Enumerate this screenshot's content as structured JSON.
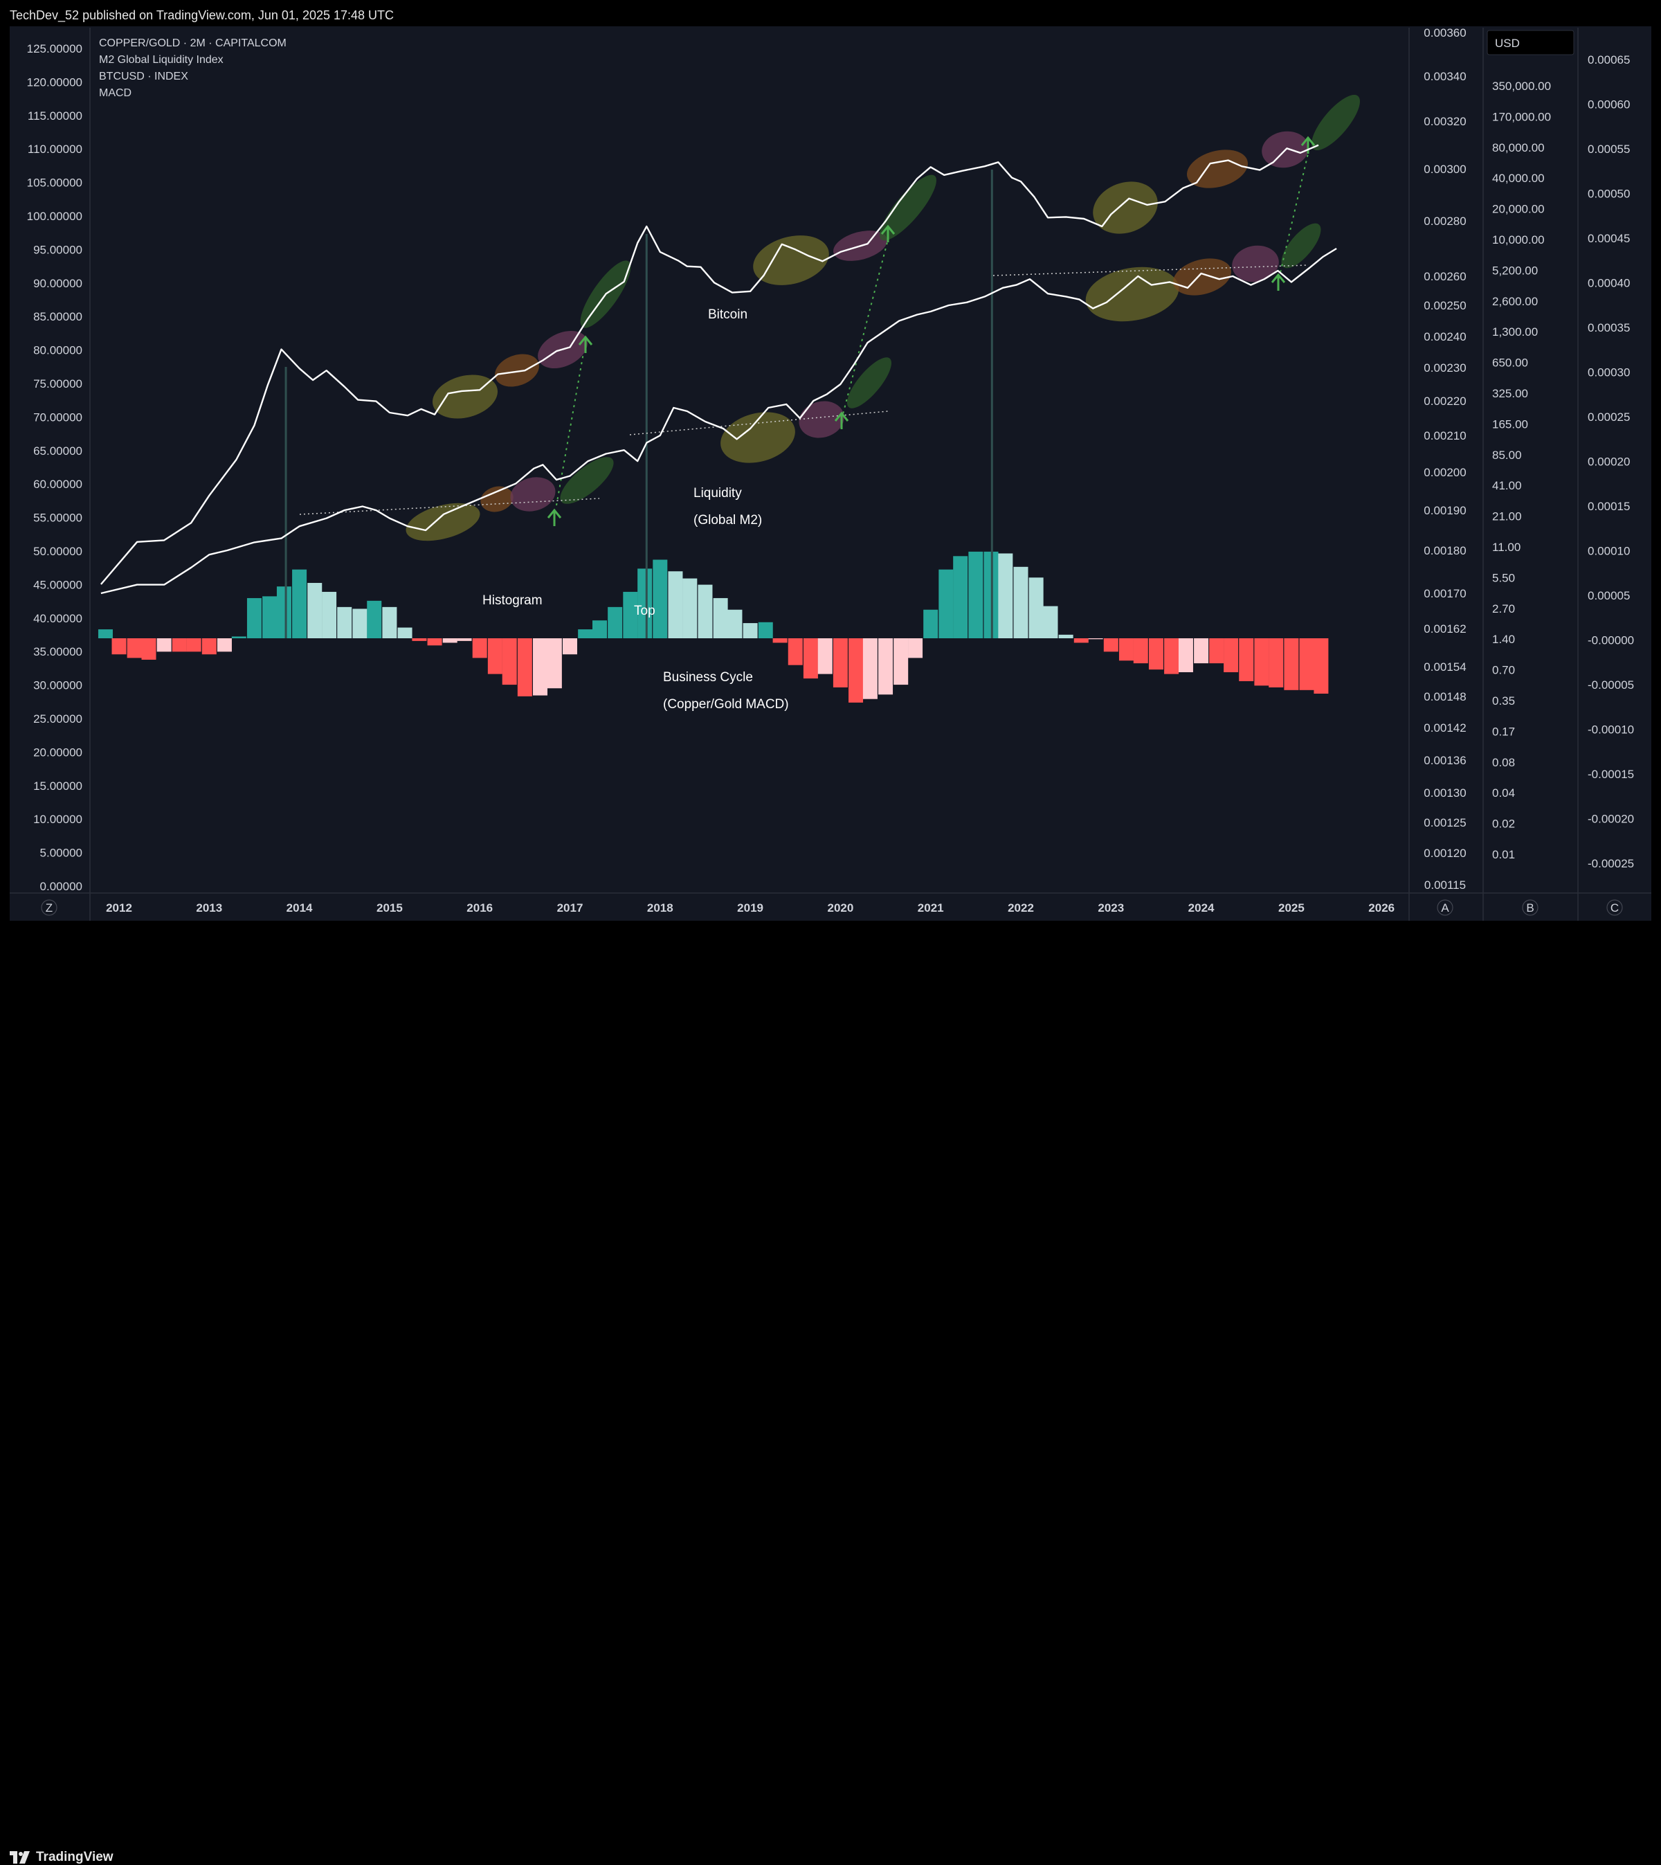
{
  "header": {
    "publish_line": "TechDev_52 published on TradingView.com, Jun 01, 2025 17:48 UTC"
  },
  "footer": {
    "logo_text": "TradingView"
  },
  "legend": [
    "COPPER/GOLD · 2M · CAPITALCOM",
    "M2 Global Liquidity Index",
    "BTCUSD · INDEX",
    "MACD"
  ],
  "currency_badge": "USD",
  "axis_letters": {
    "z": "Z",
    "a": "A",
    "b": "B",
    "c": "C"
  },
  "annotations": {
    "bitcoin": "Bitcoin",
    "liquidity": "Liquidity",
    "liquidity_sub": "(Global M2)",
    "histogram": "Histogram",
    "top": "Top",
    "business_cycle": "Business Cycle",
    "business_cycle_sub": "(Copper/Gold MACD)"
  },
  "colors": {
    "background": "#131722",
    "hist_strong_pos": "#26a69a",
    "hist_weak_pos": "#b2dfdb",
    "hist_strong_neg": "#ff5252",
    "hist_weak_neg": "#ffcdd2",
    "line": "#ffffff",
    "arrow": "#4caf50",
    "histogram_label": "#26a69a"
  },
  "chart_data": {
    "type": "line",
    "x_axis": {
      "labels": [
        "2012",
        "2013",
        "2014",
        "2015",
        "2016",
        "2017",
        "2018",
        "2019",
        "2020",
        "2021",
        "2022",
        "2023",
        "2024",
        "2025",
        "2026"
      ]
    },
    "left_axis": {
      "labels": [
        "125.00000",
        "120.00000",
        "115.00000",
        "110.00000",
        "105.00000",
        "100.00000",
        "95.00000",
        "90.00000",
        "85.00000",
        "80.00000",
        "75.00000",
        "70.00000",
        "65.00000",
        "60.00000",
        "55.00000",
        "50.00000",
        "45.00000",
        "40.00000",
        "35.00000",
        "30.00000",
        "25.00000",
        "20.00000",
        "15.00000",
        "10.00000",
        "5.00000",
        "0.00000"
      ]
    },
    "axis_a": {
      "labels": [
        "0.00360",
        "0.00340",
        "0.00320",
        "0.00300",
        "0.00280",
        "0.00260",
        "0.00250",
        "0.00240",
        "0.00230",
        "0.00220",
        "0.00210",
        "0.00200",
        "0.00190",
        "0.00180",
        "0.00170",
        "0.00162",
        "0.00154",
        "0.00148",
        "0.00142",
        "0.00136",
        "0.00130",
        "0.00125",
        "0.00120",
        "0.00115"
      ]
    },
    "axis_b": {
      "labels": [
        "350,000.00",
        "170,000.00",
        "80,000.00",
        "40,000.00",
        "20,000.00",
        "10,000.00",
        "5,200.00",
        "2,600.00",
        "1,300.00",
        "650.00",
        "325.00",
        "165.00",
        "85.00",
        "41.00",
        "21.00",
        "11.00",
        "5.50",
        "2.70",
        "1.40",
        "0.70",
        "0.35",
        "0.17",
        "0.08",
        "0.04",
        "0.02",
        "0.01"
      ]
    },
    "axis_c": {
      "labels": [
        "0.00065",
        "0.00060",
        "0.00055",
        "0.00050",
        "0.00045",
        "0.00040",
        "0.00035",
        "0.00030",
        "0.00025",
        "0.00020",
        "0.00015",
        "0.00010",
        "0.00005",
        "-0.00000",
        "-0.00005",
        "-0.00010",
        "-0.00015",
        "-0.00020",
        "-0.00025"
      ]
    },
    "series": [
      {
        "name": "BTCUSD · INDEX",
        "axis": "B",
        "x": [
          2011.8,
          2012.2,
          2012.5,
          2012.8,
          2013.0,
          2013.3,
          2013.5,
          2013.65,
          2013.8,
          2014.0,
          2014.15,
          2014.3,
          2014.5,
          2014.65,
          2014.85,
          2015.0,
          2015.2,
          2015.35,
          2015.5,
          2015.65,
          2015.8,
          2016.0,
          2016.2,
          2016.5,
          2016.7,
          2016.85,
          2017.0,
          2017.2,
          2017.4,
          2017.6,
          2017.75,
          2017.85,
          2018.0,
          2018.2,
          2018.3,
          2018.45,
          2018.6,
          2018.8,
          2019.0,
          2019.15,
          2019.35,
          2019.5,
          2019.65,
          2019.8,
          2020.0,
          2020.3,
          2020.5,
          2020.65,
          2020.85,
          2021.0,
          2021.15,
          2021.35,
          2021.6,
          2021.75,
          2021.9,
          2022.0,
          2022.15,
          2022.3,
          2022.5,
          2022.7,
          2022.9,
          2023.0,
          2023.2,
          2023.4,
          2023.6,
          2023.8,
          2023.95,
          2024.1,
          2024.3,
          2024.45,
          2024.65,
          2024.8,
          2024.95,
          2025.1,
          2025.3
        ],
        "y": [
          5,
          13,
          13.5,
          20,
          37,
          83,
          180,
          450,
          1000,
          650,
          500,
          620,
          430,
          320,
          310,
          240,
          225,
          260,
          230,
          370,
          390,
          400,
          570,
          620,
          780,
          960,
          1050,
          2000,
          3500,
          4600,
          11000,
          16000,
          9000,
          7400,
          6500,
          6400,
          4500,
          3600,
          3700,
          5300,
          10700,
          9500,
          8200,
          7300,
          9000,
          10800,
          18000,
          28000,
          47000,
          61000,
          51000,
          56000,
          62000,
          68000,
          48000,
          44000,
          31000,
          19500,
          19800,
          19000,
          16000,
          21000,
          30000,
          26000,
          28000,
          38000,
          43000,
          66000,
          71000,
          62000,
          57000,
          68000,
          93000,
          84000,
          100000
        ]
      },
      {
        "name": "M2 Global Liquidity Index",
        "axis": "A",
        "x": [
          2011.8,
          2012.2,
          2012.5,
          2012.8,
          2013.0,
          2013.2,
          2013.5,
          2013.8,
          2014.0,
          2014.3,
          2014.5,
          2014.7,
          2014.85,
          2015.0,
          2015.2,
          2015.4,
          2015.6,
          2015.8,
          2016.0,
          2016.2,
          2016.4,
          2016.6,
          2016.7,
          2016.85,
          2017.0,
          2017.2,
          2017.4,
          2017.6,
          2017.75,
          2017.85,
          2018.0,
          2018.15,
          2018.3,
          2018.5,
          2018.7,
          2018.85,
          2019.0,
          2019.2,
          2019.4,
          2019.55,
          2019.7,
          2019.85,
          2020.0,
          2020.15,
          2020.3,
          2020.5,
          2020.65,
          2020.85,
          2021.0,
          2021.2,
          2021.4,
          2021.6,
          2021.8,
          2021.95,
          2022.1,
          2022.3,
          2022.5,
          2022.65,
          2022.8,
          2022.95,
          2023.15,
          2023.3,
          2023.45,
          2023.65,
          2023.85,
          2024.0,
          2024.2,
          2024.35,
          2024.55,
          2024.7,
          2024.85,
          2025.0,
          2025.2,
          2025.35,
          2025.5
        ],
        "y": [
          0.0017,
          0.00172,
          0.00172,
          0.00176,
          0.00179,
          0.0018,
          0.00182,
          0.00183,
          0.00186,
          0.00188,
          0.0019,
          0.00191,
          0.0019,
          0.00188,
          0.00186,
          0.00185,
          0.00189,
          0.00191,
          0.00193,
          0.00195,
          0.00197,
          0.00201,
          0.00202,
          0.00198,
          0.00199,
          0.00203,
          0.00205,
          0.00206,
          0.00203,
          0.00208,
          0.0021,
          0.00218,
          0.00217,
          0.00214,
          0.00212,
          0.00209,
          0.00212,
          0.00218,
          0.00219,
          0.00215,
          0.0022,
          0.00222,
          0.00225,
          0.00231,
          0.00238,
          0.00242,
          0.00245,
          0.00247,
          0.00248,
          0.0025,
          0.00251,
          0.00253,
          0.00256,
          0.00257,
          0.00259,
          0.00254,
          0.00253,
          0.00252,
          0.00249,
          0.00251,
          0.00256,
          0.0026,
          0.00257,
          0.00258,
          0.00256,
          0.00261,
          0.00259,
          0.0026,
          0.00257,
          0.00259,
          0.00262,
          0.00258,
          0.00263,
          0.00267,
          0.0027
        ]
      }
    ],
    "histogram": {
      "name": "Copper/Gold MACD Histogram",
      "axis": "C",
      "x": [
        2011.85,
        2012.0,
        2012.17,
        2012.33,
        2012.5,
        2012.67,
        2012.83,
        2013.0,
        2013.17,
        2013.33,
        2013.5,
        2013.67,
        2013.83,
        2014.0,
        2014.17,
        2014.33,
        2014.5,
        2014.67,
        2014.83,
        2015.0,
        2015.17,
        2015.33,
        2015.5,
        2015.67,
        2015.83,
        2016.0,
        2016.17,
        2016.33,
        2016.5,
        2016.67,
        2016.83,
        2017.0,
        2017.17,
        2017.33,
        2017.5,
        2017.67,
        2017.83,
        2018.0,
        2018.17,
        2018.33,
        2018.5,
        2018.67,
        2018.83,
        2019.0,
        2019.17,
        2019.33,
        2019.5,
        2019.67,
        2019.83,
        2020.0,
        2020.17,
        2020.33,
        2020.5,
        2020.67,
        2020.83,
        2021.0,
        2021.17,
        2021.33,
        2021.5,
        2021.67,
        2021.83,
        2022.0,
        2022.17,
        2022.33,
        2022.5,
        2022.67,
        2022.83,
        2023.0,
        2023.17,
        2023.33,
        2023.5,
        2023.67,
        2023.83,
        2024.0,
        2024.17,
        2024.33,
        2024.5,
        2024.67,
        2024.83,
        2025.0,
        2025.17,
        2025.33
      ],
      "y": [
        1e-05,
        -1.8e-05,
        -2.2e-05,
        -2.4e-05,
        -1.5e-05,
        -1.5e-05,
        -1.5e-05,
        -1.8e-05,
        -1.5e-05,
        2e-06,
        4.5e-05,
        4.7e-05,
        5.8e-05,
        7.7e-05,
        6.2e-05,
        5.2e-05,
        3.5e-05,
        3.3e-05,
        4.2e-05,
        3.5e-05,
        1.2e-05,
        -3e-06,
        -8e-06,
        -5e-06,
        -3e-06,
        -2.2e-05,
        -4e-05,
        -5.2e-05,
        -6.5e-05,
        -6.4e-05,
        -5.6e-05,
        -1.8e-05,
        1e-05,
        2e-05,
        3.5e-05,
        5.2e-05,
        7.8e-05,
        8.8e-05,
        7.5e-05,
        6.7e-05,
        6e-05,
        4.5e-05,
        3.2e-05,
        1.7e-05,
        1.8e-05,
        -5e-06,
        -3e-05,
        -4.5e-05,
        -4e-05,
        -5.5e-05,
        -7.2e-05,
        -6.8e-05,
        -6.3e-05,
        -5.2e-05,
        -2.2e-05,
        3.2e-05,
        7.7e-05,
        9.2e-05,
        9.7e-05,
        9.7e-05,
        9.5e-05,
        8e-05,
        6.8e-05,
        3.6e-05,
        4e-06,
        -5e-06,
        -1e-06,
        -1.5e-05,
        -2.5e-05,
        -2.8e-05,
        -3.5e-05,
        -4e-05,
        -3.8e-05,
        -2.8e-05,
        -2.8e-05,
        -3.8e-05,
        -4.8e-05,
        -5.3e-05,
        -5.5e-05,
        -5.8e-05,
        -5.8e-05,
        -6.2e-05
      ]
    }
  }
}
